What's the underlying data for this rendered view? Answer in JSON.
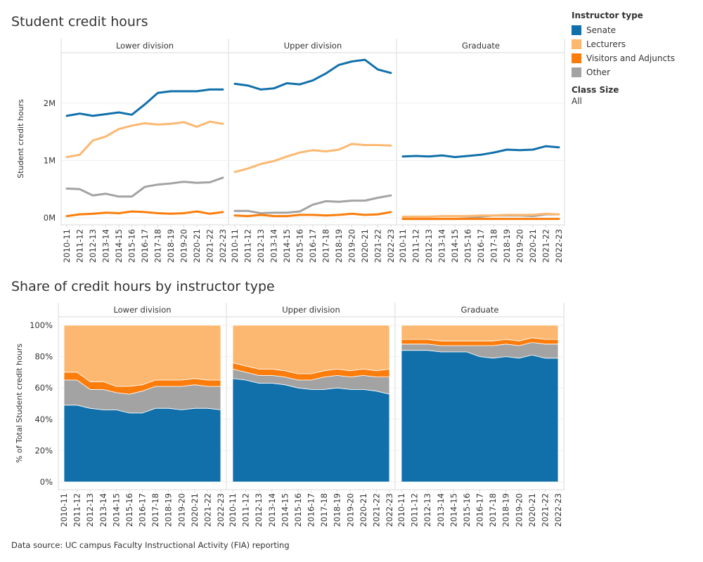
{
  "titles": {
    "top": "Student credit hours",
    "bottom": "Share of credit hours by instructor type"
  },
  "legend": {
    "title": "Instructor type",
    "items": [
      {
        "label": "Senate",
        "color": "#1170aa"
      },
      {
        "label": "Lecturers",
        "color": "#fcb871"
      },
      {
        "label": "Visitors and Adjuncts",
        "color": "#fc7d0b"
      },
      {
        "label": "Other",
        "color": "#a3a3a3"
      }
    ],
    "class_size_title": "Class Size",
    "class_size_value": "All"
  },
  "source": "Data source: UC campus Faculty Instructional Activity (FIA) reporting",
  "chart_data": [
    {
      "type": "line",
      "title": "Student credit hours",
      "ylabel": "Student credit hours",
      "ylim": [
        0,
        2800000
      ],
      "yticks": [
        0,
        1000000,
        2000000
      ],
      "ytick_labels": [
        "0M",
        "1M",
        "2M"
      ],
      "grid": true,
      "legend": "right",
      "x": [
        "2010-11",
        "2011-12",
        "2012-13",
        "2013-14",
        "2014-15",
        "2015-16",
        "2016-17",
        "2017-18",
        "2018-19",
        "2019-20",
        "2020-21",
        "2021-22",
        "2022-23"
      ],
      "panels": [
        {
          "name": "Lower division",
          "series": [
            {
              "name": "Senate",
              "values": [
                1780000,
                1820000,
                1780000,
                1810000,
                1840000,
                1800000,
                1980000,
                2180000,
                2210000,
                2210000,
                2210000,
                2240000,
                2240000
              ]
            },
            {
              "name": "Lecturers",
              "values": [
                1060000,
                1100000,
                1350000,
                1420000,
                1550000,
                1610000,
                1650000,
                1630000,
                1640000,
                1670000,
                1590000,
                1680000,
                1640000
              ]
            },
            {
              "name": "Visitors and Adjuncts",
              "values": [
                30000,
                60000,
                70000,
                90000,
                80000,
                110000,
                100000,
                80000,
                70000,
                80000,
                110000,
                70000,
                100000
              ]
            },
            {
              "name": "Other",
              "values": [
                510000,
                500000,
                390000,
                420000,
                370000,
                370000,
                540000,
                580000,
                600000,
                630000,
                610000,
                620000,
                700000
              ]
            }
          ]
        },
        {
          "name": "Upper division",
          "series": [
            {
              "name": "Senate",
              "values": [
                2340000,
                2310000,
                2240000,
                2260000,
                2350000,
                2330000,
                2400000,
                2520000,
                2670000,
                2730000,
                2760000,
                2590000,
                2530000
              ]
            },
            {
              "name": "Lecturers",
              "values": [
                800000,
                860000,
                940000,
                990000,
                1070000,
                1140000,
                1180000,
                1160000,
                1190000,
                1290000,
                1270000,
                1270000,
                1260000
              ]
            },
            {
              "name": "Visitors and Adjuncts",
              "values": [
                40000,
                30000,
                50000,
                30000,
                30000,
                50000,
                50000,
                40000,
                50000,
                70000,
                50000,
                60000,
                100000
              ]
            },
            {
              "name": "Other",
              "values": [
                120000,
                120000,
                80000,
                90000,
                90000,
                110000,
                230000,
                290000,
                280000,
                300000,
                300000,
                350000,
                390000
              ]
            }
          ]
        },
        {
          "name": "Graduate",
          "series": [
            {
              "name": "Senate",
              "values": [
                1070000,
                1080000,
                1070000,
                1090000,
                1060000,
                1080000,
                1100000,
                1140000,
                1190000,
                1180000,
                1190000,
                1250000,
                1230000
              ]
            },
            {
              "name": "Lecturers",
              "values": [
                20000,
                20000,
                20000,
                30000,
                30000,
                30000,
                40000,
                40000,
                50000,
                50000,
                50000,
                70000,
                60000
              ]
            },
            {
              "name": "Visitors and Adjuncts",
              "values": [
                -20000,
                -20000,
                -20000,
                -20000,
                -20000,
                -20000,
                -20000,
                -20000,
                -20000,
                -20000,
                -20000,
                -20000,
                -20000
              ]
            },
            {
              "name": "Other",
              "values": [
                -20000,
                -20000,
                -20000,
                -20000,
                -20000,
                -10000,
                20000,
                40000,
                40000,
                40000,
                30000,
                60000,
                60000
              ]
            }
          ]
        }
      ]
    },
    {
      "type": "area",
      "title": "Share of credit hours by instructor type",
      "ylabel": "% of Total Student credit hours",
      "ylim": [
        0,
        100
      ],
      "yticks": [
        0,
        20,
        40,
        60,
        80,
        100
      ],
      "ytick_labels": [
        "0%",
        "20%",
        "40%",
        "60%",
        "80%",
        "100%"
      ],
      "stacked": true,
      "stack_order": [
        "Senate",
        "Other",
        "Visitors and Adjuncts",
        "Lecturers"
      ],
      "grid": true,
      "x": [
        "2010-11",
        "2011-12",
        "2012-13",
        "2013-14",
        "2014-15",
        "2015-16",
        "2016-17",
        "2017-18",
        "2018-19",
        "2019-20",
        "2020-21",
        "2021-22",
        "2022-23"
      ],
      "panels": [
        {
          "name": "Lower division",
          "series": [
            {
              "name": "Senate",
              "values": [
                49,
                49,
                47,
                46,
                46,
                44,
                44,
                47,
                47,
                46,
                47,
                47,
                46
              ]
            },
            {
              "name": "Other",
              "values": [
                16,
                16,
                12,
                13,
                11,
                12,
                14,
                14,
                14,
                15,
                15,
                14,
                15
              ]
            },
            {
              "name": "Visitors and Adjuncts",
              "values": [
                5,
                5,
                5,
                5,
                4,
                5,
                4,
                4,
                4,
                4,
                4,
                4,
                4
              ]
            },
            {
              "name": "Lecturers",
              "values": [
                30,
                30,
                36,
                36,
                39,
                39,
                38,
                35,
                35,
                35,
                34,
                35,
                35
              ]
            }
          ]
        },
        {
          "name": "Upper division",
          "series": [
            {
              "name": "Senate",
              "values": [
                66,
                65,
                63,
                63,
                62,
                60,
                59,
                59,
                60,
                59,
                59,
                58,
                56
              ]
            },
            {
              "name": "Other",
              "values": [
                6,
                5,
                5,
                5,
                5,
                5,
                6,
                8,
                8,
                8,
                9,
                9,
                11
              ]
            },
            {
              "name": "Visitors and Adjuncts",
              "values": [
                4,
                4,
                4,
                4,
                4,
                4,
                4,
                4,
                4,
                4,
                4,
                4,
                5
              ]
            },
            {
              "name": "Lecturers",
              "values": [
                24,
                26,
                28,
                28,
                29,
                31,
                31,
                29,
                28,
                29,
                28,
                29,
                28
              ]
            }
          ]
        },
        {
          "name": "Graduate",
          "series": [
            {
              "name": "Senate",
              "values": [
                84,
                84,
                84,
                83,
                83,
                83,
                80,
                79,
                80,
                79,
                81,
                79,
                79
              ]
            },
            {
              "name": "Other",
              "values": [
                4,
                4,
                4,
                4,
                4,
                4,
                7,
                8,
                8,
                8,
                8,
                9,
                9
              ]
            },
            {
              "name": "Visitors and Adjuncts",
              "values": [
                3,
                3,
                3,
                3,
                3,
                3,
                3,
                3,
                3,
                3,
                3,
                3,
                3
              ]
            },
            {
              "name": "Lecturers",
              "values": [
                9,
                9,
                9,
                10,
                10,
                10,
                10,
                10,
                9,
                10,
                8,
                9,
                9
              ]
            }
          ]
        }
      ]
    }
  ]
}
